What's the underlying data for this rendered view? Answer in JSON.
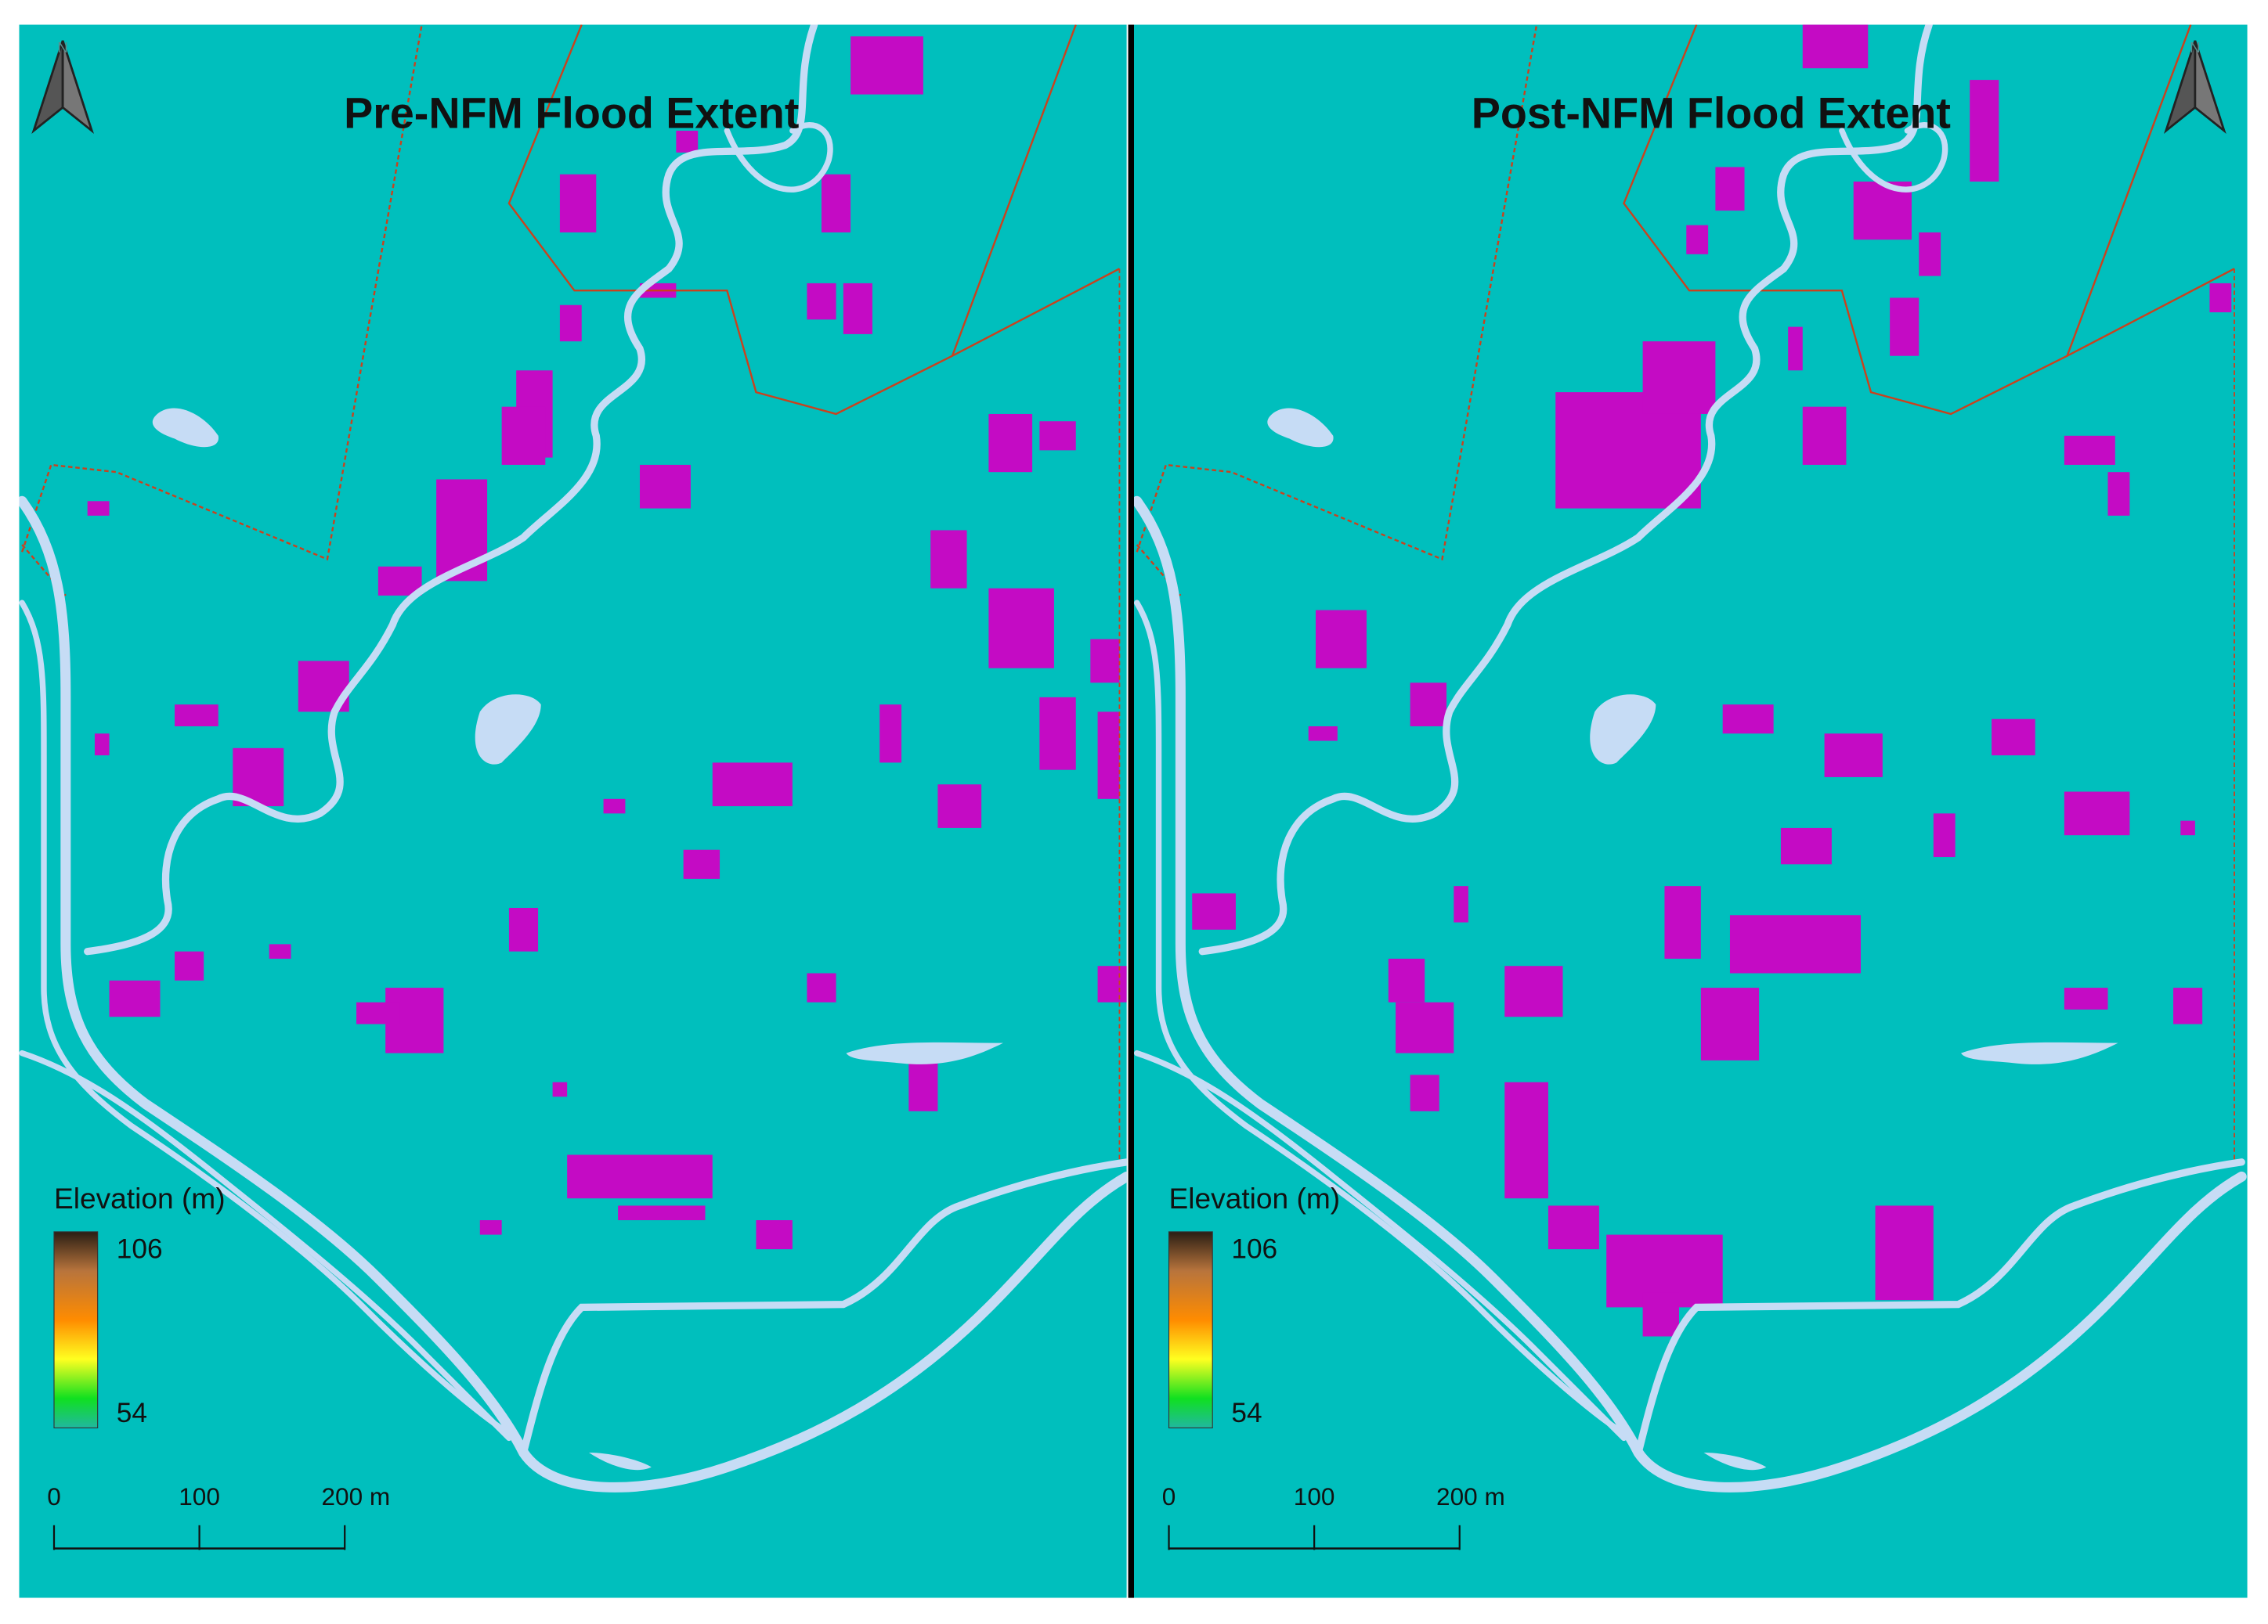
{
  "panels": [
    {
      "title": "Pre-NFM Flood Extent",
      "north": "N",
      "legend": {
        "title": "Elevation (m)",
        "max": 106,
        "min": 54
      },
      "scale_bar": {
        "labels": [
          "0",
          "100",
          "200 m"
        ]
      }
    },
    {
      "title": "Post-NFM Flood Extent",
      "north": "N",
      "legend": {
        "title": "Elevation (m)",
        "max": 106,
        "min": 54
      },
      "scale_bar": {
        "labels": [
          "0",
          "100",
          "200 m"
        ]
      }
    }
  ]
}
